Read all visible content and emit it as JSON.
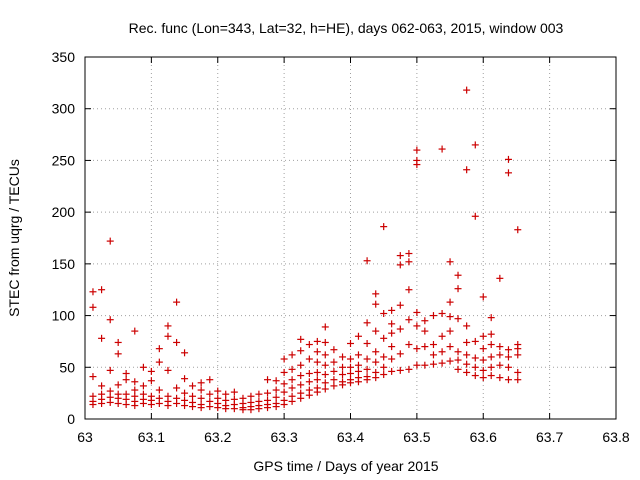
{
  "chart_data": {
    "type": "scatter",
    "title": "Rec. func (Lon=343, Lat=32, h=HE), days 062-063, 2015, window 003",
    "xlabel": "GPS time / Days of year 2015",
    "ylabel": "STEC from uqrg / TECUs",
    "xlim": [
      63,
      63.8
    ],
    "ylim": [
      0,
      350
    ],
    "x_ticks": [
      63,
      63.1,
      63.2,
      63.3,
      63.4,
      63.5,
      63.6,
      63.7,
      63.8
    ],
    "x_tick_labels": [
      "63",
      "63.1",
      "63.2",
      "63.3",
      "63.4",
      "63.5",
      "63.6",
      "63.7",
      "63.8"
    ],
    "y_ticks": [
      0,
      50,
      100,
      150,
      200,
      250,
      300,
      350
    ],
    "y_tick_labels": [
      "0",
      "50",
      "100",
      "150",
      "200",
      "250",
      "300",
      "350"
    ],
    "grid": true,
    "legend": "none",
    "series": [
      {
        "name": "STEC",
        "color": "#cc0000",
        "marker": "plus",
        "points": [
          [
            63.012,
            123
          ],
          [
            63.012,
            108
          ],
          [
            63.012,
            41
          ],
          [
            63.012,
            22
          ],
          [
            63.012,
            17
          ],
          [
            63.012,
            14
          ],
          [
            63.025,
            125
          ],
          [
            63.025,
            78
          ],
          [
            63.025,
            32
          ],
          [
            63.025,
            24
          ],
          [
            63.025,
            19
          ],
          [
            63.025,
            15
          ],
          [
            63.038,
            172
          ],
          [
            63.038,
            96
          ],
          [
            63.038,
            47
          ],
          [
            63.038,
            27
          ],
          [
            63.038,
            21
          ],
          [
            63.038,
            16
          ],
          [
            63.05,
            74
          ],
          [
            63.05,
            63
          ],
          [
            63.05,
            33
          ],
          [
            63.05,
            24
          ],
          [
            63.05,
            20
          ],
          [
            63.05,
            15
          ],
          [
            63.062,
            44
          ],
          [
            63.062,
            38
          ],
          [
            63.062,
            24
          ],
          [
            63.062,
            19
          ],
          [
            63.062,
            14
          ],
          [
            63.075,
            85
          ],
          [
            63.075,
            36
          ],
          [
            63.075,
            28
          ],
          [
            63.075,
            22
          ],
          [
            63.075,
            17
          ],
          [
            63.075,
            13
          ],
          [
            63.088,
            50
          ],
          [
            63.088,
            32
          ],
          [
            63.088,
            24
          ],
          [
            63.088,
            19
          ],
          [
            63.088,
            15
          ],
          [
            63.1,
            46
          ],
          [
            63.1,
            37
          ],
          [
            63.1,
            22
          ],
          [
            63.1,
            18
          ],
          [
            63.1,
            14
          ],
          [
            63.112,
            68
          ],
          [
            63.112,
            55
          ],
          [
            63.112,
            28
          ],
          [
            63.112,
            20
          ],
          [
            63.112,
            15
          ],
          [
            63.125,
            90
          ],
          [
            63.125,
            80
          ],
          [
            63.125,
            47
          ],
          [
            63.125,
            22
          ],
          [
            63.125,
            17
          ],
          [
            63.125,
            13
          ],
          [
            63.138,
            113
          ],
          [
            63.138,
            74
          ],
          [
            63.138,
            30
          ],
          [
            63.138,
            20
          ],
          [
            63.138,
            15
          ],
          [
            63.15,
            64
          ],
          [
            63.15,
            39
          ],
          [
            63.15,
            25
          ],
          [
            63.15,
            18
          ],
          [
            63.15,
            13
          ],
          [
            63.162,
            32
          ],
          [
            63.162,
            22
          ],
          [
            63.162,
            16
          ],
          [
            63.162,
            12
          ],
          [
            63.175,
            35
          ],
          [
            63.175,
            28
          ],
          [
            63.175,
            20
          ],
          [
            63.175,
            14
          ],
          [
            63.175,
            11
          ],
          [
            63.188,
            38
          ],
          [
            63.188,
            24
          ],
          [
            63.188,
            17
          ],
          [
            63.188,
            12
          ],
          [
            63.2,
            27
          ],
          [
            63.2,
            20
          ],
          [
            63.2,
            15
          ],
          [
            63.2,
            11
          ],
          [
            63.212,
            24
          ],
          [
            63.212,
            18
          ],
          [
            63.212,
            13
          ],
          [
            63.212,
            10
          ],
          [
            63.225,
            26
          ],
          [
            63.225,
            19
          ],
          [
            63.225,
            14
          ],
          [
            63.225,
            10
          ],
          [
            63.238,
            20
          ],
          [
            63.238,
            15
          ],
          [
            63.238,
            11
          ],
          [
            63.238,
            9
          ],
          [
            63.25,
            22
          ],
          [
            63.25,
            16
          ],
          [
            63.25,
            12
          ],
          [
            63.25,
            9
          ],
          [
            63.262,
            24
          ],
          [
            63.262,
            17
          ],
          [
            63.262,
            13
          ],
          [
            63.262,
            10
          ],
          [
            63.275,
            38
          ],
          [
            63.275,
            25
          ],
          [
            63.275,
            18
          ],
          [
            63.275,
            14
          ],
          [
            63.275,
            11
          ],
          [
            63.288,
            37
          ],
          [
            63.288,
            28
          ],
          [
            63.288,
            21
          ],
          [
            63.288,
            15
          ],
          [
            63.288,
            12
          ],
          [
            63.3,
            58
          ],
          [
            63.3,
            45
          ],
          [
            63.3,
            34
          ],
          [
            63.3,
            26
          ],
          [
            63.3,
            18
          ],
          [
            63.3,
            14
          ],
          [
            63.312,
            62
          ],
          [
            63.312,
            48
          ],
          [
            63.312,
            38
          ],
          [
            63.312,
            30
          ],
          [
            63.312,
            22
          ],
          [
            63.312,
            17
          ],
          [
            63.325,
            77
          ],
          [
            63.325,
            66
          ],
          [
            63.325,
            52
          ],
          [
            63.325,
            42
          ],
          [
            63.325,
            33
          ],
          [
            63.325,
            25
          ],
          [
            63.325,
            20
          ],
          [
            63.338,
            72
          ],
          [
            63.338,
            58
          ],
          [
            63.338,
            44
          ],
          [
            63.338,
            36
          ],
          [
            63.338,
            28
          ],
          [
            63.338,
            23
          ],
          [
            63.35,
            75
          ],
          [
            63.35,
            65
          ],
          [
            63.35,
            55
          ],
          [
            63.35,
            45
          ],
          [
            63.35,
            38
          ],
          [
            63.35,
            30
          ],
          [
            63.35,
            26
          ],
          [
            63.362,
            89
          ],
          [
            63.362,
            74
          ],
          [
            63.362,
            62
          ],
          [
            63.362,
            52
          ],
          [
            63.362,
            43
          ],
          [
            63.362,
            35
          ],
          [
            63.362,
            29
          ],
          [
            63.375,
            67
          ],
          [
            63.375,
            55
          ],
          [
            63.375,
            46
          ],
          [
            63.375,
            38
          ],
          [
            63.375,
            32
          ],
          [
            63.388,
            60
          ],
          [
            63.388,
            50
          ],
          [
            63.388,
            43
          ],
          [
            63.388,
            36
          ],
          [
            63.388,
            33
          ],
          [
            63.4,
            73
          ],
          [
            63.4,
            58
          ],
          [
            63.4,
            50
          ],
          [
            63.4,
            44
          ],
          [
            63.4,
            38
          ],
          [
            63.4,
            35
          ],
          [
            63.412,
            80
          ],
          [
            63.412,
            62
          ],
          [
            63.412,
            52
          ],
          [
            63.412,
            46
          ],
          [
            63.412,
            40
          ],
          [
            63.412,
            36
          ],
          [
            63.425,
            153
          ],
          [
            63.425,
            93
          ],
          [
            63.425,
            73
          ],
          [
            63.425,
            58
          ],
          [
            63.425,
            48
          ],
          [
            63.425,
            41
          ],
          [
            63.425,
            38
          ],
          [
            63.438,
            121
          ],
          [
            63.438,
            111
          ],
          [
            63.438,
            85
          ],
          [
            63.438,
            65
          ],
          [
            63.438,
            55
          ],
          [
            63.438,
            45
          ],
          [
            63.438,
            40
          ],
          [
            63.45,
            186
          ],
          [
            63.45,
            102
          ],
          [
            63.45,
            78
          ],
          [
            63.45,
            60
          ],
          [
            63.45,
            50
          ],
          [
            63.45,
            43
          ],
          [
            63.462,
            105
          ],
          [
            63.462,
            92
          ],
          [
            63.462,
            83
          ],
          [
            63.462,
            70
          ],
          [
            63.462,
            58
          ],
          [
            63.462,
            46
          ],
          [
            63.475,
            158
          ],
          [
            63.475,
            149
          ],
          [
            63.475,
            110
          ],
          [
            63.475,
            87
          ],
          [
            63.475,
            63
          ],
          [
            63.475,
            47
          ],
          [
            63.488,
            160
          ],
          [
            63.488,
            152
          ],
          [
            63.488,
            125
          ],
          [
            63.488,
            96
          ],
          [
            63.488,
            72
          ],
          [
            63.488,
            48
          ],
          [
            63.5,
            260
          ],
          [
            63.5,
            250
          ],
          [
            63.5,
            246
          ],
          [
            63.5,
            103
          ],
          [
            63.5,
            90
          ],
          [
            63.5,
            68
          ],
          [
            63.5,
            52
          ],
          [
            63.512,
            95
          ],
          [
            63.512,
            85
          ],
          [
            63.512,
            70
          ],
          [
            63.512,
            52
          ],
          [
            63.525,
            100
          ],
          [
            63.525,
            72
          ],
          [
            63.525,
            62
          ],
          [
            63.525,
            53
          ],
          [
            63.538,
            261
          ],
          [
            63.538,
            102
          ],
          [
            63.538,
            80
          ],
          [
            63.538,
            65
          ],
          [
            63.538,
            54
          ],
          [
            63.55,
            152
          ],
          [
            63.55,
            113
          ],
          [
            63.55,
            99
          ],
          [
            63.55,
            85
          ],
          [
            63.55,
            70
          ],
          [
            63.55,
            56
          ],
          [
            63.562,
            139
          ],
          [
            63.562,
            126
          ],
          [
            63.562,
            97
          ],
          [
            63.562,
            65
          ],
          [
            63.562,
            57
          ],
          [
            63.562,
            48
          ],
          [
            63.575,
            318
          ],
          [
            63.575,
            241
          ],
          [
            63.575,
            90
          ],
          [
            63.575,
            74
          ],
          [
            63.575,
            62
          ],
          [
            63.575,
            53
          ],
          [
            63.575,
            45
          ],
          [
            63.588,
            265
          ],
          [
            63.588,
            196
          ],
          [
            63.588,
            75
          ],
          [
            63.588,
            59
          ],
          [
            63.588,
            50
          ],
          [
            63.588,
            42
          ],
          [
            63.6,
            118
          ],
          [
            63.6,
            80
          ],
          [
            63.6,
            68
          ],
          [
            63.6,
            57
          ],
          [
            63.6,
            47
          ],
          [
            63.6,
            40
          ],
          [
            63.612,
            98
          ],
          [
            63.612,
            82
          ],
          [
            63.612,
            72
          ],
          [
            63.612,
            60
          ],
          [
            63.612,
            50
          ],
          [
            63.612,
            42
          ],
          [
            63.625,
            136
          ],
          [
            63.625,
            70
          ],
          [
            63.625,
            62
          ],
          [
            63.625,
            52
          ],
          [
            63.625,
            40
          ],
          [
            63.638,
            251
          ],
          [
            63.638,
            238
          ],
          [
            63.638,
            67
          ],
          [
            63.638,
            60
          ],
          [
            63.638,
            50
          ],
          [
            63.638,
            38
          ],
          [
            63.652,
            183
          ],
          [
            63.652,
            72
          ],
          [
            63.652,
            68
          ],
          [
            63.652,
            62
          ],
          [
            63.652,
            45
          ],
          [
            63.652,
            38
          ]
        ]
      }
    ]
  }
}
